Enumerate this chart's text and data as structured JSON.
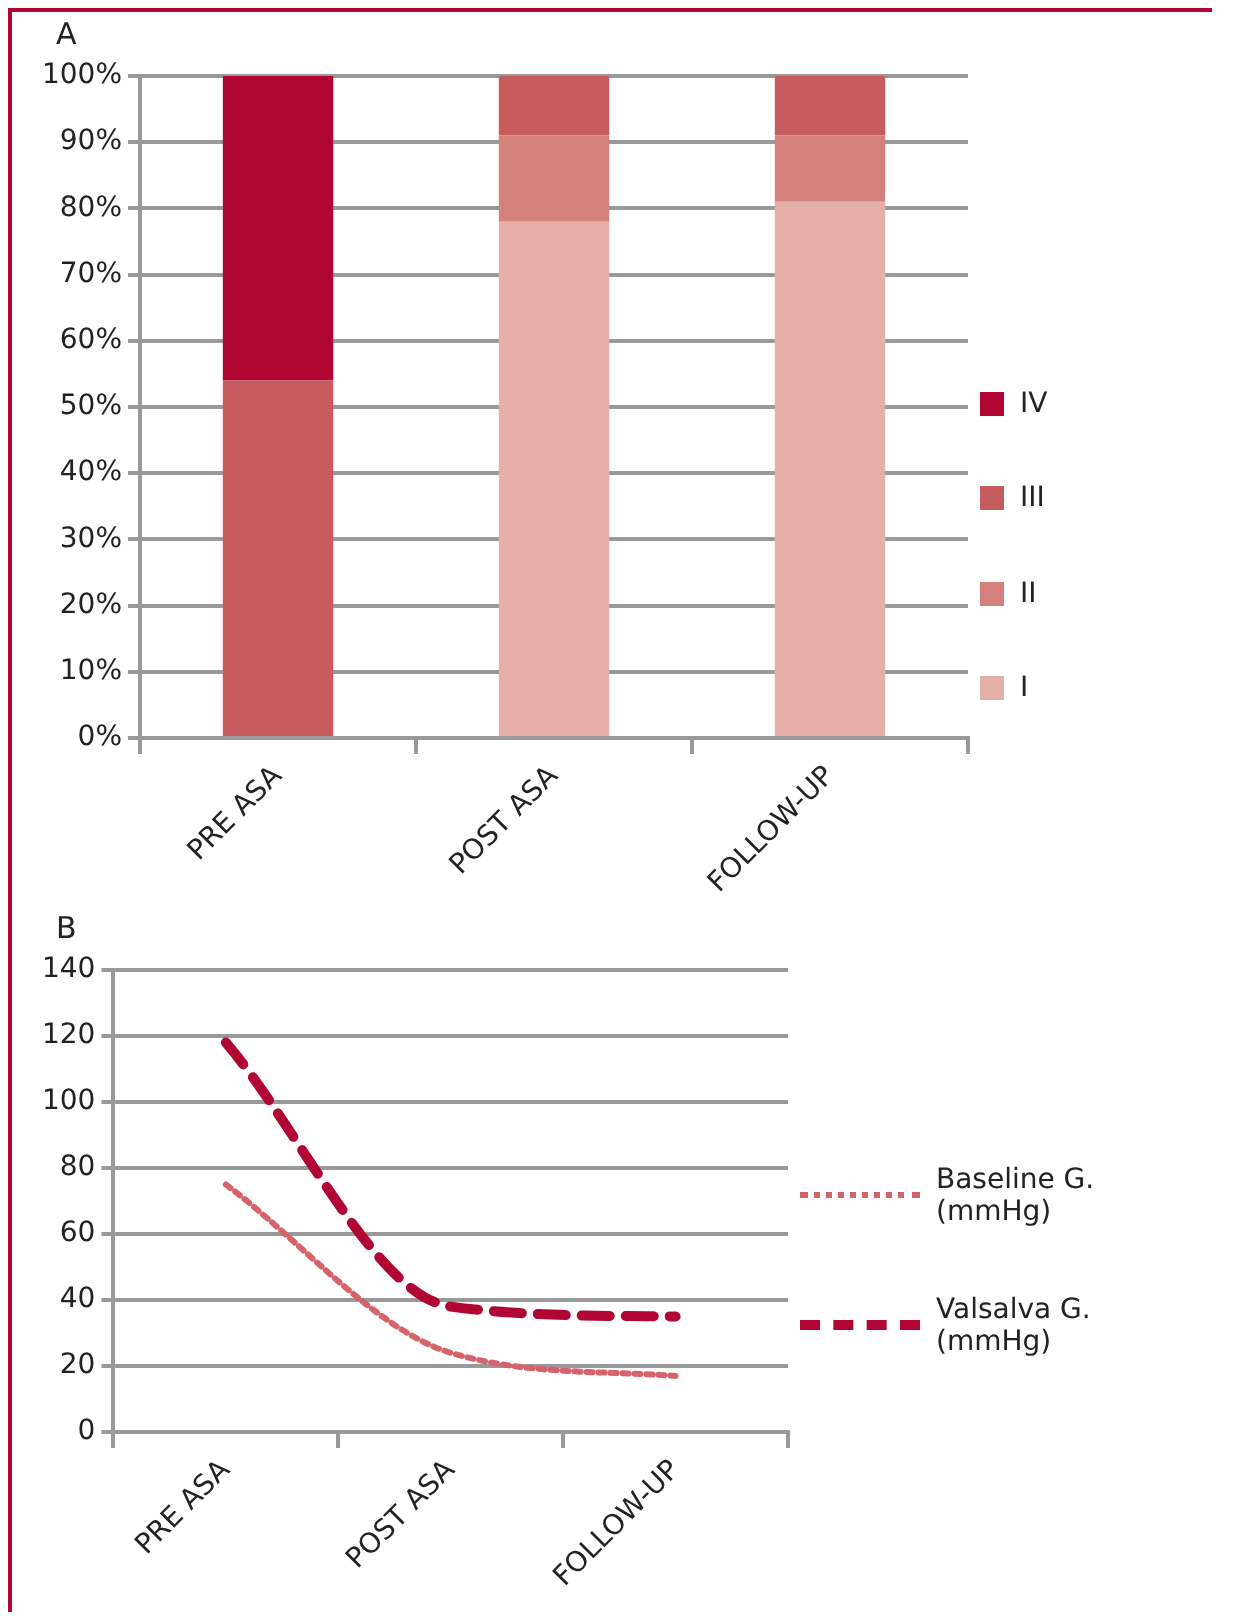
{
  "chart_data": [
    {
      "type": "bar",
      "title": "A",
      "categories": [
        "PRE ASA",
        "POST ASA",
        "FOLLOW-UP"
      ],
      "stacked": true,
      "series": [
        {
          "name": "I",
          "color": "#e5b0aa",
          "values": [
            0,
            78,
            81
          ]
        },
        {
          "name": "II",
          "color": "#d4817d",
          "values": [
            0,
            13,
            10
          ]
        },
        {
          "name": "III",
          "color": "#c75c5f",
          "values": [
            54,
            9,
            9
          ]
        },
        {
          "name": "IV",
          "color": "#b10634",
          "values": [
            46,
            0,
            0
          ]
        }
      ],
      "ylim": [
        0,
        100
      ],
      "yticks": [
        {
          "value": 0,
          "label": "0%"
        },
        {
          "value": 10,
          "label": "10%"
        },
        {
          "value": 20,
          "label": "20%"
        },
        {
          "value": 30,
          "label": "30%"
        },
        {
          "value": 40,
          "label": "40%"
        },
        {
          "value": 50,
          "label": "50%"
        },
        {
          "value": 60,
          "label": "60%"
        },
        {
          "value": 70,
          "label": "70%"
        },
        {
          "value": 80,
          "label": "80%"
        },
        {
          "value": 90,
          "label": "90%"
        },
        {
          "value": 100,
          "label": "100%"
        }
      ],
      "grid": "y",
      "legend": "right"
    },
    {
      "type": "line",
      "title": "B",
      "categories": [
        "PRE ASA",
        "POST ASA",
        "FOLLOW-UP"
      ],
      "series": [
        {
          "name": "Baseline G. (mmHg)",
          "color": "#d4646a",
          "values": [
            75,
            24,
            17
          ],
          "line_style": "dotted"
        },
        {
          "name": "Valsalva G. (mmHg)",
          "color": "#b10634",
          "values": [
            118,
            38,
            35
          ],
          "line_style": "dashed"
        }
      ],
      "ylim": [
        0,
        140
      ],
      "yticks": [
        0,
        20,
        40,
        60,
        80,
        100,
        120,
        140
      ],
      "grid": "y",
      "legend": "right"
    }
  ]
}
